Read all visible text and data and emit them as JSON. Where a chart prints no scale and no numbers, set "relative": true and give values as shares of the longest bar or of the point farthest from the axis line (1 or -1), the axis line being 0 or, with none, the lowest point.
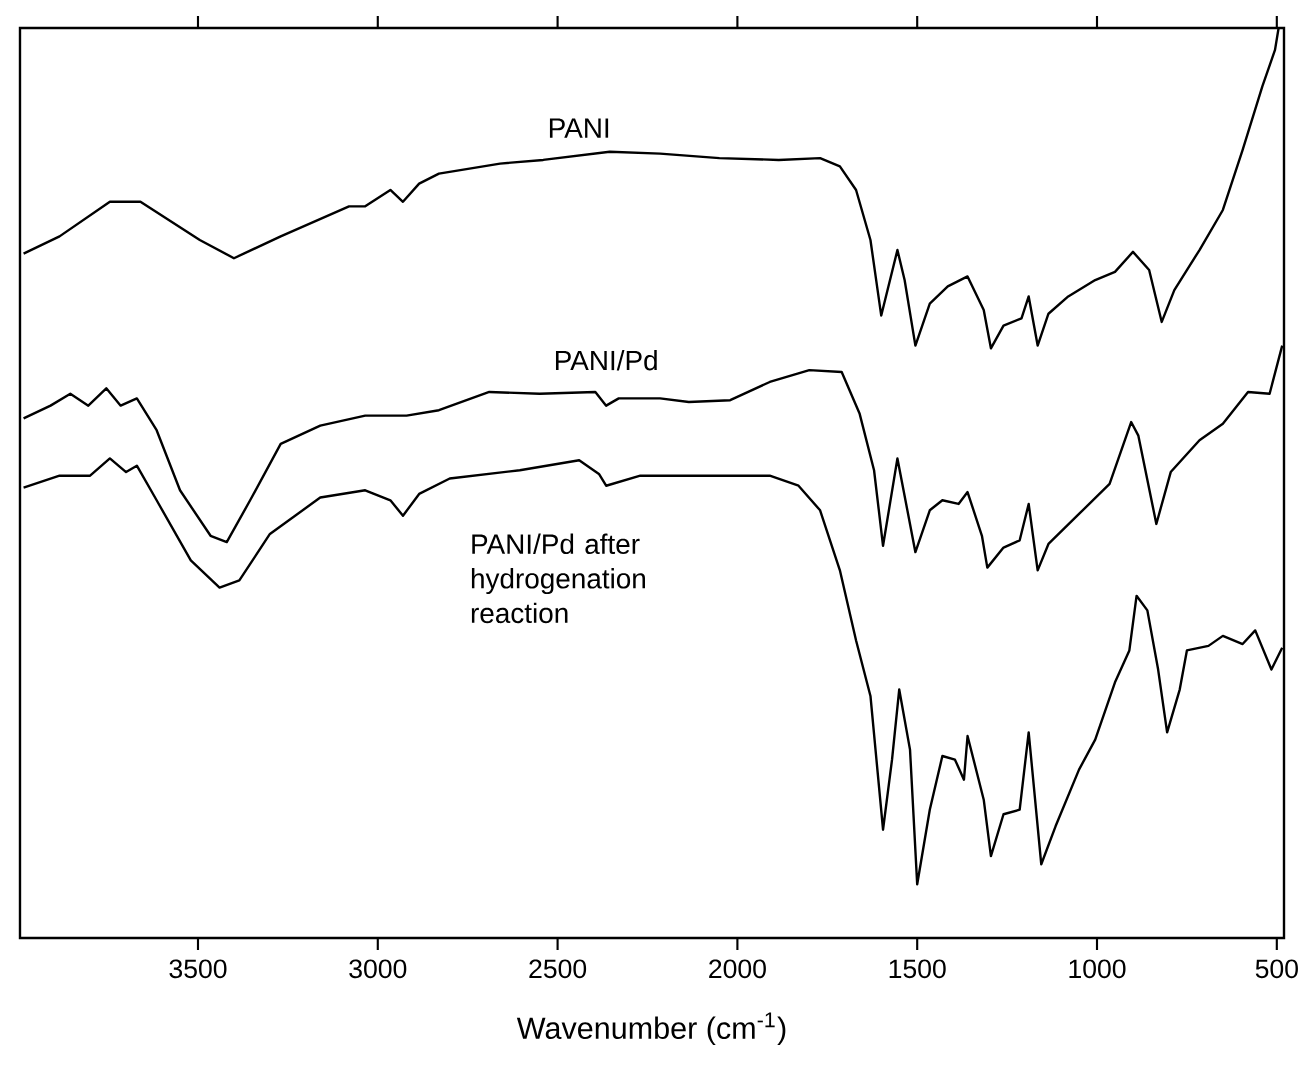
{
  "chart_data": {
    "type": "line",
    "xlabel": "Wavenumber (cm$^{-1}$)",
    "relative": true,
    "xlim": [
      3995,
      480
    ],
    "xticks": [
      3500,
      3000,
      2500,
      2000,
      1500,
      1000,
      500
    ],
    "series": [
      {
        "name": "PANI",
        "color": "#000000",
        "x": [
          3985,
          3885,
          3745,
          3660,
          3495,
          3400,
          3270,
          3080,
          3035,
          2965,
          2930,
          2885,
          2830,
          2660,
          2540,
          2355,
          2215,
          2050,
          1885,
          1770,
          1715,
          1670,
          1630,
          1600,
          1555,
          1535,
          1505,
          1465,
          1415,
          1360,
          1315,
          1295,
          1260,
          1210,
          1190,
          1165,
          1135,
          1080,
          1005,
          950,
          900,
          855,
          820,
          785,
          715,
          650,
          595,
          540,
          505,
          495
        ],
        "values": [
          0.752,
          0.771,
          0.809,
          0.809,
          0.767,
          0.747,
          0.771,
          0.804,
          0.804,
          0.822,
          0.809,
          0.829,
          0.84,
          0.851,
          0.855,
          0.864,
          0.862,
          0.857,
          0.855,
          0.857,
          0.848,
          0.822,
          0.767,
          0.684,
          0.756,
          0.723,
          0.651,
          0.697,
          0.716,
          0.727,
          0.69,
          0.648,
          0.673,
          0.681,
          0.705,
          0.651,
          0.686,
          0.705,
          0.723,
          0.732,
          0.754,
          0.734,
          0.677,
          0.712,
          0.756,
          0.8,
          0.866,
          0.936,
          0.976,
          1.0
        ]
      },
      {
        "name": "PANI/Pd",
        "color": "#000000",
        "x": [
          3985,
          3910,
          3855,
          3805,
          3755,
          3715,
          3670,
          3615,
          3550,
          3465,
          3420,
          3355,
          3270,
          3160,
          3035,
          2920,
          2830,
          2690,
          2550,
          2395,
          2365,
          2330,
          2215,
          2135,
          2020,
          1910,
          1800,
          1710,
          1660,
          1620,
          1595,
          1555,
          1505,
          1465,
          1430,
          1385,
          1360,
          1320,
          1305,
          1260,
          1215,
          1190,
          1165,
          1135,
          1050,
          965,
          905,
          885,
          835,
          795,
          715,
          650,
          580,
          520,
          485
        ],
        "values": [
          0.571,
          0.585,
          0.598,
          0.585,
          0.604,
          0.585,
          0.593,
          0.558,
          0.492,
          0.442,
          0.435,
          0.481,
          0.543,
          0.563,
          0.574,
          0.574,
          0.58,
          0.6,
          0.598,
          0.6,
          0.585,
          0.593,
          0.593,
          0.589,
          0.591,
          0.611,
          0.624,
          0.622,
          0.576,
          0.514,
          0.431,
          0.527,
          0.424,
          0.47,
          0.481,
          0.477,
          0.49,
          0.442,
          0.407,
          0.429,
          0.437,
          0.477,
          0.404,
          0.433,
          0.466,
          0.499,
          0.567,
          0.552,
          0.455,
          0.512,
          0.547,
          0.565,
          0.6,
          0.598,
          0.651
        ]
      },
      {
        "name": "PANI/Pd after hydrogenation reaction",
        "color": "#000000",
        "x": [
          3985,
          3885,
          3800,
          3745,
          3700,
          3670,
          3615,
          3520,
          3440,
          3385,
          3300,
          3160,
          3035,
          2965,
          2930,
          2885,
          2800,
          2605,
          2440,
          2385,
          2365,
          2270,
          2215,
          2135,
          2020,
          1910,
          1830,
          1770,
          1715,
          1670,
          1630,
          1595,
          1570,
          1550,
          1520,
          1500,
          1465,
          1430,
          1395,
          1370,
          1360,
          1315,
          1295,
          1260,
          1215,
          1190,
          1155,
          1115,
          1050,
          1005,
          950,
          910,
          890,
          860,
          830,
          805,
          770,
          750,
          690,
          650,
          595,
          560,
          515,
          485
        ],
        "values": [
          0.495,
          0.508,
          0.508,
          0.527,
          0.512,
          0.519,
          0.481,
          0.415,
          0.385,
          0.393,
          0.444,
          0.484,
          0.492,
          0.481,
          0.464,
          0.488,
          0.505,
          0.514,
          0.525,
          0.51,
          0.497,
          0.508,
          0.508,
          0.508,
          0.508,
          0.508,
          0.497,
          0.47,
          0.404,
          0.327,
          0.266,
          0.119,
          0.196,
          0.273,
          0.207,
          0.059,
          0.141,
          0.2,
          0.196,
          0.174,
          0.222,
          0.152,
          0.09,
          0.136,
          0.141,
          0.226,
          0.081,
          0.123,
          0.185,
          0.218,
          0.281,
          0.316,
          0.376,
          0.36,
          0.295,
          0.226,
          0.273,
          0.316,
          0.321,
          0.332,
          0.323,
          0.338,
          0.295,
          0.319
        ]
      }
    ]
  }
}
